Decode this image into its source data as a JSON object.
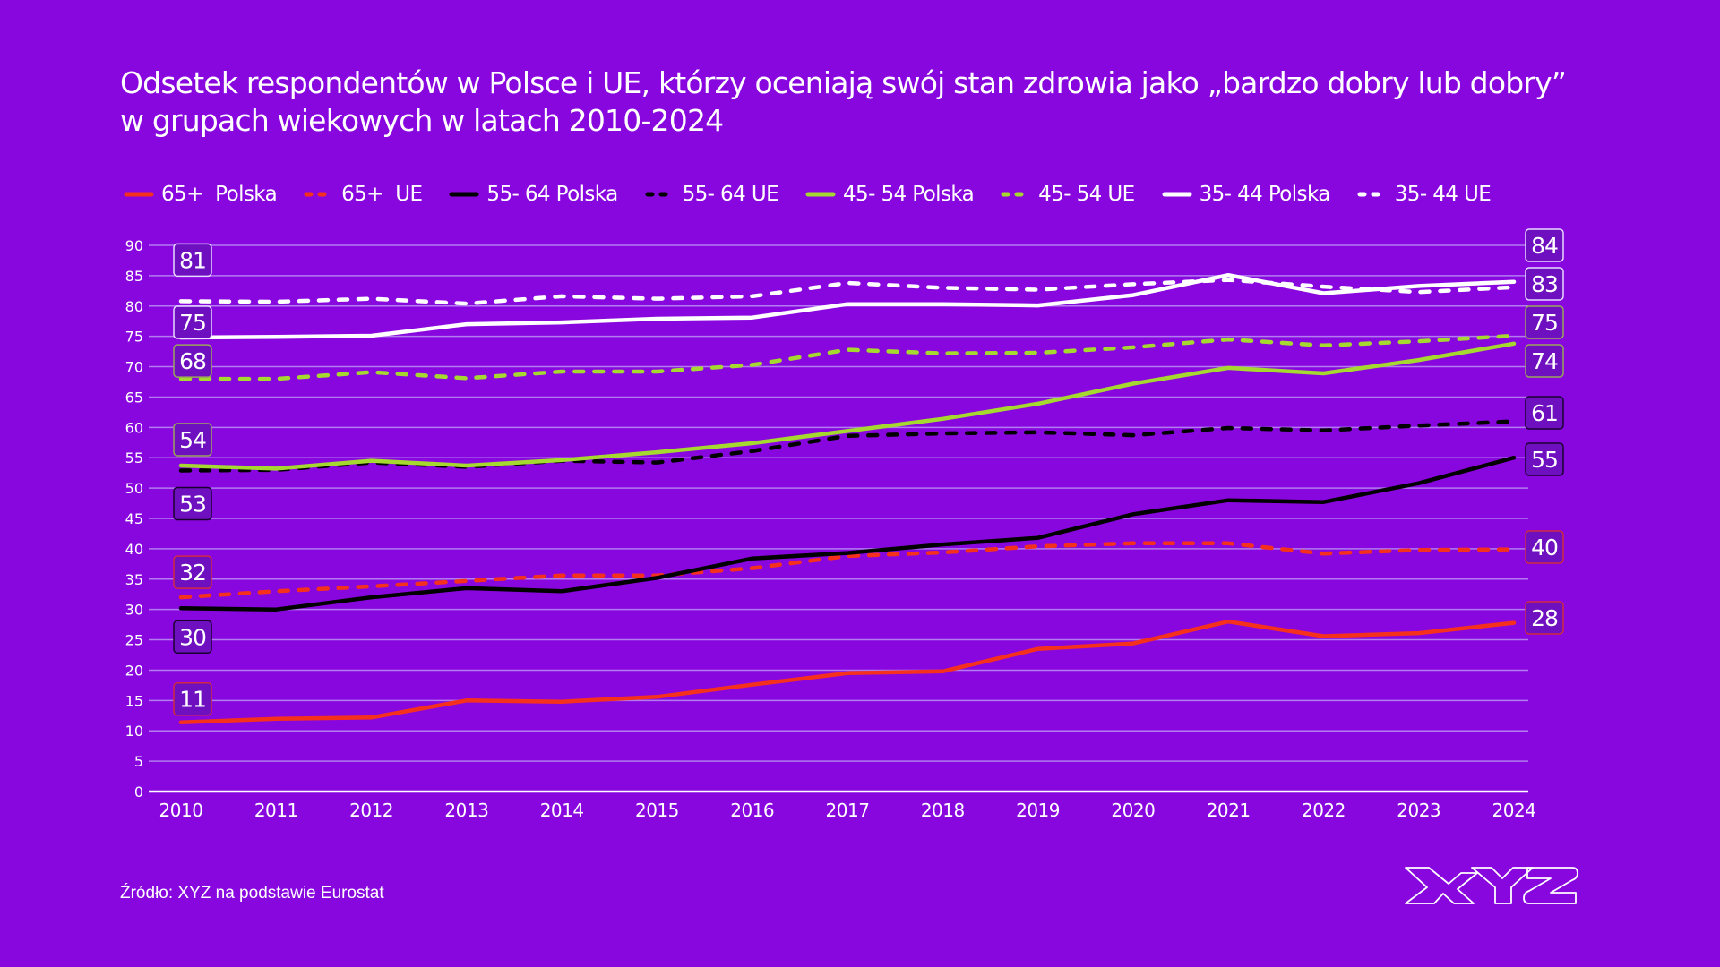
{
  "chart_data": {
    "type": "line",
    "title": "Odsetek respondentów w Polsce i UE, którzy oceniają swój stan zdrowia jako „bardzo dobry lub dobry” w grupach wiekowych w latach 2010-2024",
    "title_lines": [
      "Odsetek respondentów w Polsce i UE, którzy oceniają swój stan zdrowia jako „bardzo dobry lub dobry”",
      "w grupach wiekowych w latach 2010-2024"
    ],
    "xlabel": "",
    "ylabel": "",
    "x": [
      "2010",
      "2011",
      "2012",
      "2013",
      "2014",
      "2015",
      "2016",
      "2017",
      "2018",
      "2019",
      "2020",
      "2021",
      "2022",
      "2023",
      "2024"
    ],
    "ylim": [
      0,
      90
    ],
    "yticks": [
      0,
      5,
      10,
      15,
      20,
      25,
      30,
      35,
      40,
      45,
      50,
      55,
      60,
      65,
      70,
      75,
      80,
      85,
      90
    ],
    "grid": true,
    "legend_position": "top",
    "series": [
      {
        "name": "65+  Polska",
        "color": "#F5311E",
        "dashed": false,
        "start_label": "11",
        "end_label": "28",
        "values": [
          11.4,
          12.0,
          12.2,
          15.0,
          14.8,
          15.6,
          17.6,
          19.5,
          19.8,
          23.5,
          24.4,
          28.0,
          25.6,
          26.1,
          27.8
        ]
      },
      {
        "name": "65+  UE",
        "color": "#F5311E",
        "dashed": true,
        "start_label": "32",
        "end_label": "40",
        "values": [
          32.0,
          33.0,
          33.8,
          34.7,
          35.6,
          35.6,
          36.8,
          38.8,
          39.4,
          40.4,
          40.9,
          40.9,
          39.2,
          39.8,
          39.9
        ]
      },
      {
        "name": "55- 64 Polska",
        "color": "#000000",
        "dashed": false,
        "start_label": "30",
        "end_label": "55",
        "values": [
          30.2,
          30.0,
          32.0,
          33.5,
          33.0,
          35.2,
          38.4,
          39.3,
          40.7,
          41.8,
          45.7,
          48.0,
          47.7,
          50.8,
          55.0
        ]
      },
      {
        "name": "55- 64 UE",
        "color": "#000000",
        "dashed": true,
        "start_label": "53",
        "end_label": "61",
        "values": [
          52.9,
          53.0,
          54.2,
          53.5,
          54.5,
          54.2,
          56.1,
          58.6,
          59.0,
          59.2,
          58.7,
          59.9,
          59.5,
          60.3,
          61.0
        ]
      },
      {
        "name": "45- 54 Polska",
        "color": "#A5D92F",
        "dashed": false,
        "start_label": "54",
        "end_label": "74",
        "values": [
          53.7,
          53.2,
          54.5,
          53.7,
          54.6,
          55.9,
          57.4,
          59.4,
          61.4,
          63.9,
          67.2,
          69.8,
          68.9,
          71.1,
          73.8
        ]
      },
      {
        "name": "45- 54 UE",
        "color": "#A5D92F",
        "dashed": true,
        "start_label": "68",
        "end_label": "75",
        "values": [
          68.0,
          68.0,
          69.1,
          68.1,
          69.2,
          69.2,
          70.3,
          72.8,
          72.2,
          72.3,
          73.2,
          74.5,
          73.5,
          74.2,
          75.1
        ]
      },
      {
        "name": "35- 44 Polska",
        "color": "#FFFFFF",
        "dashed": false,
        "start_label": "75",
        "end_label": "84",
        "values": [
          74.8,
          74.9,
          75.1,
          77.0,
          77.3,
          77.9,
          78.1,
          80.3,
          80.3,
          80.1,
          81.8,
          85.1,
          82.1,
          83.3,
          84.0
        ]
      },
      {
        "name": "35- 44 UE",
        "color": "#FFFFFF",
        "dashed": true,
        "start_label": "81",
        "end_label": "83",
        "values": [
          80.8,
          80.7,
          81.2,
          80.4,
          81.6,
          81.2,
          81.6,
          83.8,
          83.0,
          82.7,
          83.6,
          84.3,
          83.2,
          82.3,
          83.1
        ]
      }
    ]
  },
  "footer": {
    "source": "Źródło: XYZ na podstawie Eurostat",
    "logo_text": "XYZ",
    "logo_icon": "xyz-logo-icon"
  },
  "colors": {
    "background": "#8907DF",
    "label_fill": "#6E10C0",
    "grid": "#B27BF0"
  }
}
